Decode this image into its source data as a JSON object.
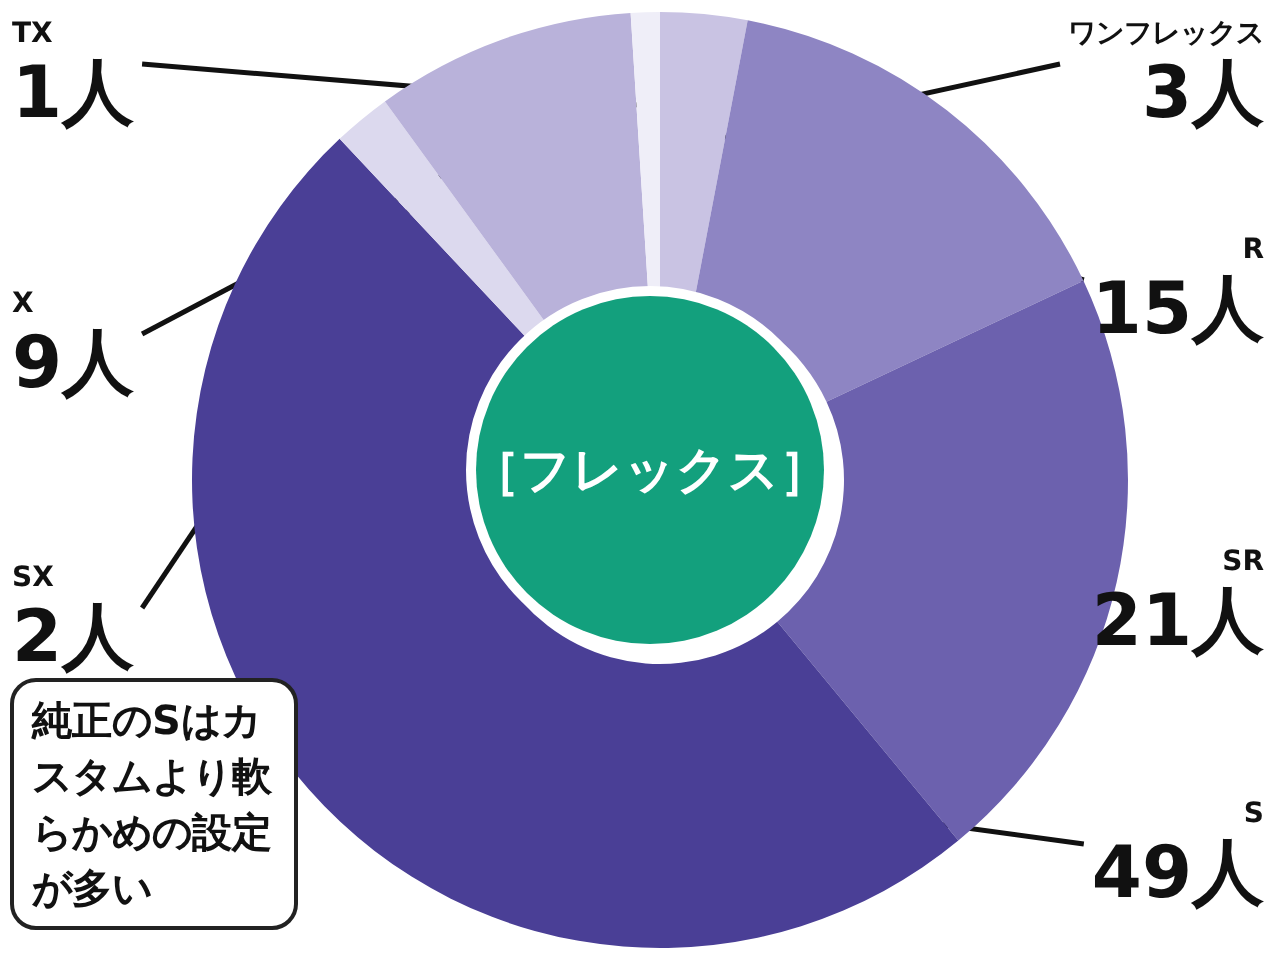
{
  "chart_data": {
    "type": "donut",
    "title": "［フレックス］",
    "categories": [
      "ワンフレックス",
      "R",
      "SR",
      "S",
      "SX",
      "X",
      "TX"
    ],
    "values": [
      3,
      15,
      21,
      49,
      2,
      9,
      1
    ],
    "value_labels": [
      "3人",
      "15人",
      "21人",
      "49人",
      "2人",
      "9人",
      "1人"
    ],
    "colors": [
      "#c9c3e3",
      "#8e85c3",
      "#6c61ae",
      "#4a3f96",
      "#dcd9ee",
      "#b9b2da",
      "#efeef8"
    ],
    "legend": false,
    "annotations": [
      "純正のSはカスタムより軟らかめの設定が多い"
    ]
  }
}
